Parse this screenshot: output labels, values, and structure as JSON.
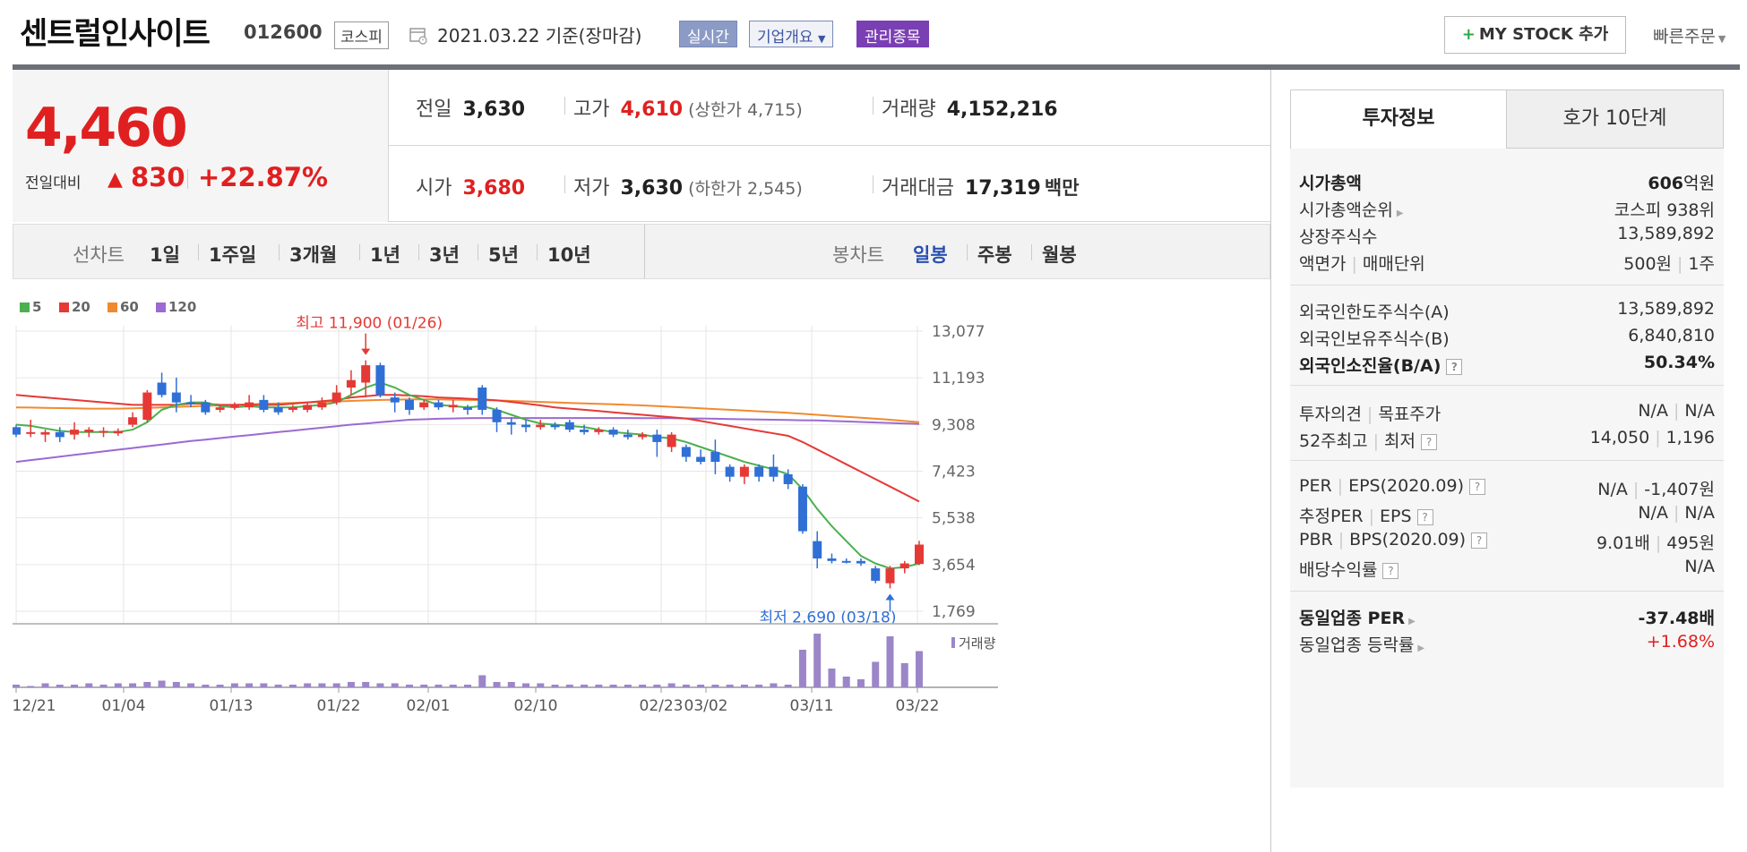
{
  "header": {
    "stock_name": "센트럴인사이트",
    "stock_code": "012600",
    "market": "코스피",
    "date": "2021.03.22 기준(장마감)",
    "tags": {
      "realtime": "실시간",
      "company": "기업개요",
      "managed": "관리종목"
    },
    "mystock": "MY STOCK 추가",
    "quick_order": "빠른주문"
  },
  "price": {
    "current": "4,460",
    "change_label": "전일대비",
    "change": "830",
    "change_pct": "+22.87%",
    "prev_label": "전일",
    "prev": "3,630",
    "high_label": "고가",
    "high": "4,610",
    "upper_limit": "(상한가 4,715)",
    "volume_label": "거래량",
    "volume": "4,152,216",
    "open_label": "시가",
    "open": "3,680",
    "low_label": "저가",
    "low": "3,630",
    "lower_limit": "(하한가 2,545)",
    "amount_label": "거래대금",
    "amount": "17,319",
    "amount_unit": "백만"
  },
  "periods": {
    "line_label": "선차트",
    "line_items": [
      "1일",
      "1주일",
      "3개월",
      "1년",
      "3년",
      "5년",
      "10년"
    ],
    "candle_label": "봉차트",
    "candle_items": [
      "일봉",
      "주봉",
      "월봉"
    ]
  },
  "chart_data": {
    "type": "candlestick",
    "legend": [
      "5",
      "20",
      "60",
      "120"
    ],
    "legend_colors": [
      "#4caf50",
      "#e53935",
      "#f08a30",
      "#9c6ad0"
    ],
    "y_ticks": [
      "13,077",
      "11,193",
      "9,308",
      "7,423",
      "5,538",
      "3,654",
      "1,769"
    ],
    "y_range": [
      1769,
      13077
    ],
    "x_labels": [
      "12/21",
      "01/04",
      "01/13",
      "01/22",
      "02/01",
      "02/10",
      "02/23",
      "03/02",
      "03/11",
      "03/22"
    ],
    "high_annotation": "최고 11,900 (01/26)",
    "low_annotation": "최저 2,690 (03/18)",
    "volume_label": "거래량",
    "candles": [
      {
        "o": 9200,
        "c": 8900,
        "h": 9300,
        "l": 8800
      },
      {
        "o": 9000,
        "c": 9000,
        "h": 9500,
        "l": 8800
      },
      {
        "o": 8900,
        "c": 9000,
        "h": 9100,
        "l": 8600
      },
      {
        "o": 9000,
        "c": 8800,
        "h": 9200,
        "l": 8600
      },
      {
        "o": 8900,
        "c": 9100,
        "h": 9400,
        "l": 8700
      },
      {
        "o": 9000,
        "c": 9100,
        "h": 9200,
        "l": 8800
      },
      {
        "o": 9000,
        "c": 9050,
        "h": 9200,
        "l": 8800
      },
      {
        "o": 8950,
        "c": 9050,
        "h": 9150,
        "l": 8850
      },
      {
        "o": 9300,
        "c": 9600,
        "h": 9800,
        "l": 9200
      },
      {
        "o": 9500,
        "c": 10600,
        "h": 10700,
        "l": 9400
      },
      {
        "o": 11000,
        "c": 10500,
        "h": 11400,
        "l": 10400
      },
      {
        "o": 10600,
        "c": 10200,
        "h": 11200,
        "l": 9800
      },
      {
        "o": 10200,
        "c": 10150,
        "h": 10500,
        "l": 10000
      },
      {
        "o": 10200,
        "c": 9800,
        "h": 10300,
        "l": 9700
      },
      {
        "o": 9900,
        "c": 10000,
        "h": 10100,
        "l": 9800
      },
      {
        "o": 10000,
        "c": 10100,
        "h": 10200,
        "l": 9900
      },
      {
        "o": 10000,
        "c": 10200,
        "h": 10500,
        "l": 9900
      },
      {
        "o": 10300,
        "c": 9900,
        "h": 10500,
        "l": 9800
      },
      {
        "o": 10000,
        "c": 9800,
        "h": 10200,
        "l": 9700
      },
      {
        "o": 9900,
        "c": 10000,
        "h": 10100,
        "l": 9800
      },
      {
        "o": 9900,
        "c": 10100,
        "h": 10200,
        "l": 9800
      },
      {
        "o": 10000,
        "c": 10200,
        "h": 10400,
        "l": 9900
      },
      {
        "o": 10200,
        "c": 10600,
        "h": 10900,
        "l": 10100
      },
      {
        "o": 10800,
        "c": 11100,
        "h": 11500,
        "l": 10500
      },
      {
        "o": 11000,
        "c": 11700,
        "h": 11900,
        "l": 10400
      },
      {
        "o": 11700,
        "c": 10500,
        "h": 11800,
        "l": 10400
      },
      {
        "o": 10400,
        "c": 10200,
        "h": 10600,
        "l": 9800
      },
      {
        "o": 10300,
        "c": 9900,
        "h": 10400,
        "l": 9700
      },
      {
        "o": 10000,
        "c": 10200,
        "h": 10300,
        "l": 9900
      },
      {
        "o": 10200,
        "c": 10000,
        "h": 10300,
        "l": 9900
      },
      {
        "o": 10000,
        "c": 10100,
        "h": 10300,
        "l": 9800
      },
      {
        "o": 10000,
        "c": 9900,
        "h": 10100,
        "l": 9700
      },
      {
        "o": 10800,
        "c": 9900,
        "h": 10900,
        "l": 9700
      },
      {
        "o": 9900,
        "c": 9400,
        "h": 10000,
        "l": 9000
      },
      {
        "o": 9400,
        "c": 9300,
        "h": 9600,
        "l": 8900
      },
      {
        "o": 9300,
        "c": 9200,
        "h": 9500,
        "l": 9000
      },
      {
        "o": 9200,
        "c": 9300,
        "h": 9500,
        "l": 9100
      },
      {
        "o": 9300,
        "c": 9200,
        "h": 9400,
        "l": 9100
      },
      {
        "o": 9400,
        "c": 9100,
        "h": 9500,
        "l": 9000
      },
      {
        "o": 9100,
        "c": 9000,
        "h": 9300,
        "l": 8900
      },
      {
        "o": 9000,
        "c": 9100,
        "h": 9200,
        "l": 8900
      },
      {
        "o": 9100,
        "c": 8900,
        "h": 9200,
        "l": 8800
      },
      {
        "o": 8900,
        "c": 8800,
        "h": 9100,
        "l": 8700
      },
      {
        "o": 8800,
        "c": 8900,
        "h": 9000,
        "l": 8700
      },
      {
        "o": 8900,
        "c": 8600,
        "h": 9100,
        "l": 8000
      },
      {
        "o": 8400,
        "c": 8900,
        "h": 9000,
        "l": 8200
      },
      {
        "o": 8400,
        "c": 8000,
        "h": 8500,
        "l": 7800
      },
      {
        "o": 8000,
        "c": 7800,
        "h": 8300,
        "l": 7700
      },
      {
        "o": 8200,
        "c": 7800,
        "h": 8700,
        "l": 7300
      },
      {
        "o": 7600,
        "c": 7200,
        "h": 7700,
        "l": 7000
      },
      {
        "o": 7200,
        "c": 7600,
        "h": 7700,
        "l": 6900
      },
      {
        "o": 7600,
        "c": 7200,
        "h": 7700,
        "l": 7000
      },
      {
        "o": 7600,
        "c": 7200,
        "h": 8100,
        "l": 7000
      },
      {
        "o": 7300,
        "c": 6900,
        "h": 7500,
        "l": 6700
      },
      {
        "o": 6800,
        "c": 5000,
        "h": 6900,
        "l": 4900
      },
      {
        "o": 4600,
        "c": 3900,
        "h": 5000,
        "l": 3500
      },
      {
        "o": 3900,
        "c": 3800,
        "h": 4100,
        "l": 3700
      },
      {
        "o": 3800,
        "c": 3750,
        "h": 3900,
        "l": 3700
      },
      {
        "o": 3800,
        "c": 3700,
        "h": 3900,
        "l": 3600
      },
      {
        "o": 3500,
        "c": 3000,
        "h": 3600,
        "l": 2900
      },
      {
        "o": 2900,
        "c": 3500,
        "h": 3600,
        "l": 2690
      },
      {
        "o": 3500,
        "c": 3700,
        "h": 3800,
        "l": 3300
      },
      {
        "o": 3680,
        "c": 4460,
        "h": 4610,
        "l": 3630
      }
    ],
    "volumes": [
      2,
      1,
      3,
      2,
      2,
      3,
      2,
      3,
      3,
      4,
      5,
      4,
      3,
      2,
      2,
      3,
      3,
      3,
      2,
      2,
      3,
      3,
      3,
      4,
      4,
      3,
      3,
      2,
      2,
      2,
      2,
      2,
      9,
      4,
      4,
      3,
      3,
      2,
      2,
      2,
      2,
      2,
      2,
      2,
      2,
      3,
      2,
      2,
      2,
      2,
      2,
      2,
      3,
      2,
      28,
      40,
      14,
      8,
      6,
      19,
      38,
      18,
      27
    ],
    "ma5": [
      9300,
      9250,
      9150,
      9050,
      9000,
      9000,
      9000,
      9000,
      9100,
      9400,
      9900,
      10100,
      10200,
      10200,
      10050,
      10000,
      10050,
      10000,
      10000,
      10000,
      10050,
      10100,
      10200,
      10500,
      10800,
      11000,
      10800,
      10500,
      10300,
      10100,
      10050,
      10000,
      10050,
      9900,
      9700,
      9500,
      9350,
      9300,
      9250,
      9200,
      9100,
      9000,
      8950,
      8900,
      8800,
      8750,
      8600,
      8400,
      8200,
      8000,
      7800,
      7650,
      7500,
      7300,
      6700,
      5900,
      5200,
      4600,
      4000,
      3700,
      3500,
      3550,
      3700
    ],
    "ma20": [
      10500,
      10450,
      10400,
      10350,
      10300,
      10250,
      10200,
      10150,
      10100,
      10100,
      10100,
      10100,
      10150,
      10150,
      10100,
      10100,
      10100,
      10100,
      10100,
      10150,
      10200,
      10250,
      10300,
      10400,
      10450,
      10500,
      10500,
      10480,
      10450,
      10400,
      10380,
      10350,
      10320,
      10280,
      10220,
      10150,
      10080,
      10000,
      9950,
      9900,
      9850,
      9800,
      9750,
      9700,
      9650,
      9600,
      9550,
      9450,
      9350,
      9250,
      9150,
      9050,
      8950,
      8850,
      8600,
      8300,
      8000,
      7700,
      7400,
      7100,
      6800,
      6500,
      6200
    ],
    "ma60": [
      10000,
      9990,
      9980,
      9970,
      9960,
      9950,
      9950,
      9950,
      9960,
      9980,
      10000,
      10020,
      10040,
      10060,
      10080,
      10100,
      10120,
      10140,
      10160,
      10180,
      10200,
      10220,
      10240,
      10260,
      10280,
      10300,
      10310,
      10320,
      10320,
      10320,
      10310,
      10300,
      10290,
      10280,
      10260,
      10240,
      10220,
      10200,
      10180,
      10160,
      10140,
      10120,
      10100,
      10080,
      10050,
      10020,
      9990,
      9960,
      9930,
      9900,
      9870,
      9840,
      9810,
      9780,
      9740,
      9700,
      9660,
      9620,
      9580,
      9540,
      9500,
      9450,
      9400
    ],
    "ma120": [
      7800,
      7870,
      7940,
      8010,
      8080,
      8150,
      8220,
      8290,
      8360,
      8430,
      8500,
      8570,
      8640,
      8700,
      8760,
      8820,
      8880,
      8940,
      9000,
      9060,
      9120,
      9180,
      9240,
      9300,
      9350,
      9400,
      9450,
      9500,
      9520,
      9540,
      9550,
      9560,
      9570,
      9570,
      9570,
      9570,
      9570,
      9570,
      9570,
      9570,
      9570,
      9570,
      9570,
      9560,
      9560,
      9560,
      9550,
      9550,
      9540,
      9530,
      9520,
      9510,
      9500,
      9490,
      9480,
      9470,
      9450,
      9430,
      9410,
      9390,
      9370,
      9350,
      9330
    ]
  },
  "side": {
    "tab_active": "투자정보",
    "tab_other": "호가 10단계",
    "mcap_label": "시가총액",
    "mcap_val": "606",
    "mcap_unit": "억원",
    "rank_label": "시가총액순위",
    "rank_val": "코스피 938위",
    "shares_label": "상장주식수",
    "shares_val": "13,589,892",
    "face_label": "액면가",
    "unit_label": "매매단위",
    "face_val": "500원",
    "unit_val": "1주",
    "foreign_limit_label": "외국인한도주식수(A)",
    "foreign_limit_val": "13,589,892",
    "foreign_hold_label": "외국인보유주식수(B)",
    "foreign_hold_val": "6,840,810",
    "foreign_ratio_label": "외국인소진율(B/A)",
    "foreign_ratio_val": "50.34%",
    "opinion_label": "투자의견",
    "target_label": "목표주가",
    "opinion_val": "N/A",
    "target_val": "N/A",
    "w52_label": "52주최고",
    "w52low_label": "최저",
    "w52_high": "14,050",
    "w52_low": "1,196",
    "per_label": "PER",
    "eps_label": "EPS(2020.09)",
    "per_val": "N/A",
    "eps_val": "-1,407원",
    "eper_label": "추정PER",
    "eeps_label": "EPS",
    "eper_val": "N/A",
    "eeps_val": "N/A",
    "pbr_label": "PBR",
    "bps_label": "BPS(2020.09)",
    "pbr_val": "9.01배",
    "bps_val": "495원",
    "div_label": "배당수익률",
    "div_val": "N/A",
    "ind_per_label": "동일업종 PER",
    "ind_per_val": "-37.48배",
    "ind_chg_label": "동일업종 등락률",
    "ind_chg_val": "+1.68%"
  }
}
